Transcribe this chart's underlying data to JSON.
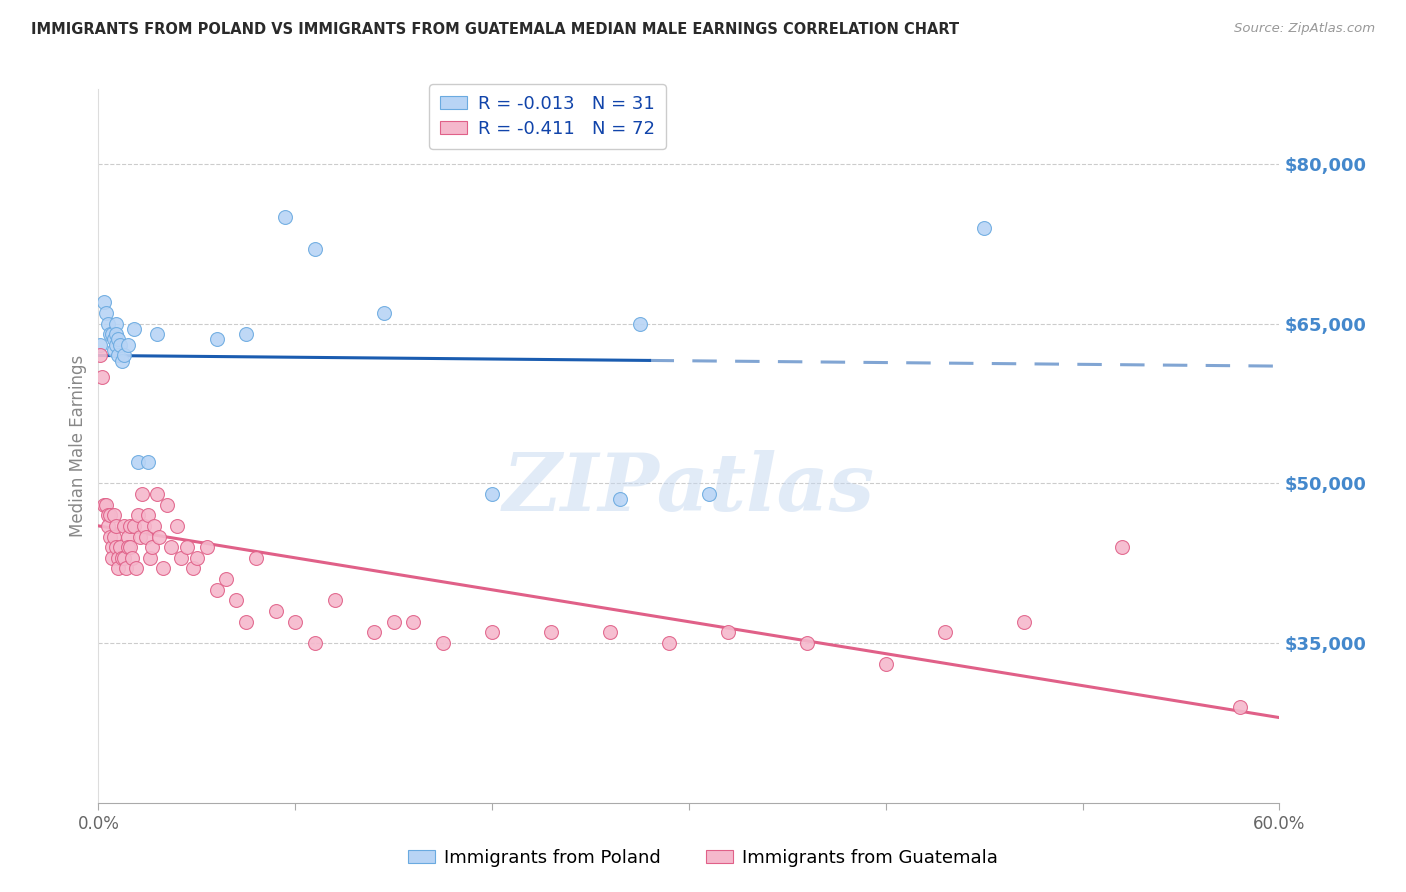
{
  "title": "IMMIGRANTS FROM POLAND VS IMMIGRANTS FROM GUATEMALA MEDIAN MALE EARNINGS CORRELATION CHART",
  "source": "Source: ZipAtlas.com",
  "ylabel": "Median Male Earnings",
  "yticks": [
    35000,
    50000,
    65000,
    80000
  ],
  "ytick_labels": [
    "$35,000",
    "$50,000",
    "$65,000",
    "$80,000"
  ],
  "xmin": 0.0,
  "xmax": 0.6,
  "ymin": 20000,
  "ymax": 87000,
  "poland_color": "#b8d4f5",
  "poland_edge": "#6aaae0",
  "poland_line_color": "#1a5cb0",
  "poland_line_solid_end": 0.28,
  "guatemala_color": "#f5b8cc",
  "guatemala_edge": "#e06088",
  "guatemala_line_color": "#e06088",
  "poland_x": [
    0.001,
    0.003,
    0.004,
    0.005,
    0.006,
    0.007,
    0.008,
    0.008,
    0.009,
    0.009,
    0.009,
    0.01,
    0.01,
    0.011,
    0.012,
    0.013,
    0.015,
    0.018,
    0.02,
    0.025,
    0.03,
    0.06,
    0.075,
    0.095,
    0.11,
    0.145,
    0.2,
    0.265,
    0.275,
    0.31,
    0.45
  ],
  "poland_y": [
    63000,
    67000,
    66000,
    65000,
    64000,
    64000,
    63500,
    62500,
    65000,
    64000,
    63000,
    62000,
    63500,
    63000,
    61500,
    62000,
    63000,
    64500,
    52000,
    52000,
    64000,
    63500,
    64000,
    75000,
    72000,
    66000,
    49000,
    48500,
    65000,
    49000,
    74000
  ],
  "guatemala_x": [
    0.001,
    0.002,
    0.003,
    0.004,
    0.005,
    0.005,
    0.006,
    0.006,
    0.007,
    0.007,
    0.008,
    0.008,
    0.009,
    0.009,
    0.01,
    0.01,
    0.011,
    0.012,
    0.013,
    0.013,
    0.014,
    0.015,
    0.015,
    0.016,
    0.016,
    0.017,
    0.018,
    0.019,
    0.02,
    0.021,
    0.022,
    0.023,
    0.024,
    0.025,
    0.026,
    0.027,
    0.028,
    0.03,
    0.031,
    0.033,
    0.035,
    0.037,
    0.04,
    0.042,
    0.045,
    0.048,
    0.05,
    0.055,
    0.06,
    0.065,
    0.07,
    0.075,
    0.08,
    0.09,
    0.1,
    0.11,
    0.12,
    0.14,
    0.15,
    0.16,
    0.175,
    0.2,
    0.23,
    0.26,
    0.29,
    0.32,
    0.36,
    0.4,
    0.43,
    0.47,
    0.52,
    0.58
  ],
  "guatemala_y": [
    62000,
    60000,
    48000,
    48000,
    47000,
    46000,
    47000,
    45000,
    44000,
    43000,
    47000,
    45000,
    46000,
    44000,
    43000,
    42000,
    44000,
    43000,
    43000,
    46000,
    42000,
    45000,
    44000,
    46000,
    44000,
    43000,
    46000,
    42000,
    47000,
    45000,
    49000,
    46000,
    45000,
    47000,
    43000,
    44000,
    46000,
    49000,
    45000,
    42000,
    48000,
    44000,
    46000,
    43000,
    44000,
    42000,
    43000,
    44000,
    40000,
    41000,
    39000,
    37000,
    43000,
    38000,
    37000,
    35000,
    39000,
    36000,
    37000,
    37000,
    35000,
    36000,
    36000,
    36000,
    35000,
    36000,
    35000,
    33000,
    36000,
    37000,
    44000,
    29000
  ],
  "watermark_text": "ZIPatlas",
  "watermark_color": "#c5d8f0",
  "watermark_alpha": 0.5,
  "background_color": "#ffffff",
  "grid_color": "#cccccc",
  "title_color": "#2a2a2a",
  "axis_label_color": "#4488cc",
  "legend_text_color": "#1144aa",
  "legend_R_poland": "R = -0.013",
  "legend_N_poland": "N = 31",
  "legend_R_guatemala": "R = -0.411",
  "legend_N_guatemala": "N = 72",
  "legend_label_poland": "Immigrants from Poland",
  "legend_label_guatemala": "Immigrants from Guatemala"
}
